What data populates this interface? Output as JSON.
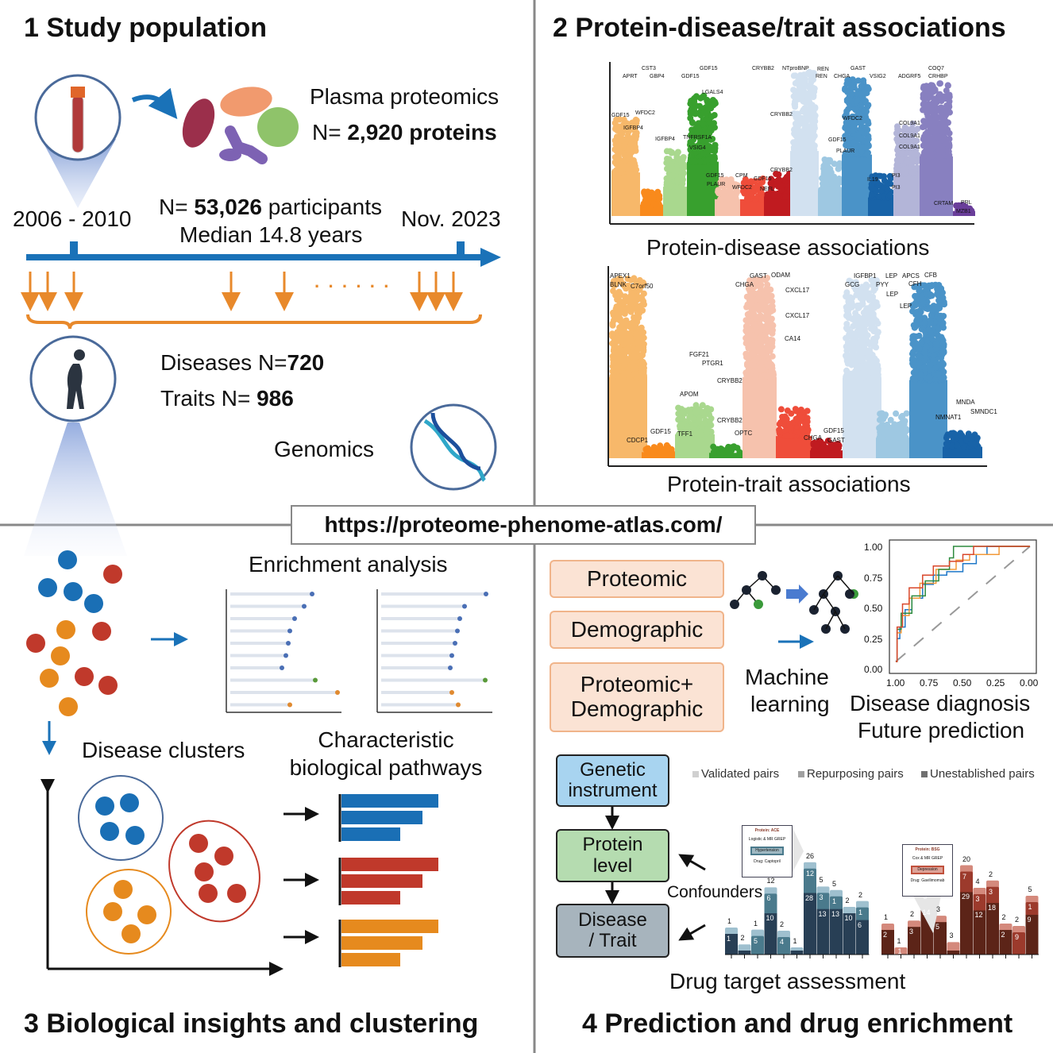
{
  "panel1": {
    "title": "1 Study population",
    "plasma_label": "Plasma proteomics",
    "proteins_prefix": "N= ",
    "proteins_value": "2,920 proteins",
    "start_date": "2006 - 2010",
    "participants_prefix": "N= ",
    "participants_value": "53,026",
    "participants_suffix": "participants",
    "median_followup": "Median 14.8 years",
    "end_date": "Nov. 2023",
    "diseases_prefix": "Diseases N=",
    "diseases_value": "720",
    "traits_prefix": "Traits N= ",
    "traits_value": "986",
    "genomics_label": "Genomics",
    "timeline_color": "#1a72b8",
    "arrow_color": "#e8892b",
    "ellipsis": "· · · · · ·"
  },
  "panel2": {
    "title": "2 Protein-disease/trait associations",
    "disease_plot_label": "Protein-disease associations",
    "trait_plot_label": "Protein-trait associations",
    "disease_labels": [
      "CST3",
      "APRT",
      "GBP4",
      "GDF15",
      "GDF15",
      "CRYBB2",
      "NTproBNP",
      "REN",
      "REN",
      "CHGA",
      "GAST",
      "VSIG2",
      "ADGRF5",
      "COQ7",
      "CRHBP",
      "LGALS4",
      "GDF15",
      "WFDC2",
      "IGFBP4",
      "CRYBB2",
      "WFDC2",
      "IGFBP4",
      "TNFRSF1A",
      "VSIG4",
      "GDF15",
      "PLAUR",
      "COL9A1",
      "COL9A1",
      "COL9A1",
      "CRYBB2",
      "GDF15",
      "CPM",
      "GDF15",
      "PLAUR",
      "WFDC2",
      "NEFL",
      "IL19",
      "PI3",
      "PI3",
      "CRTAM",
      "PRL",
      "MZB1"
    ],
    "trait_labels": [
      "APEX1",
      "BLNK",
      "C7orf50",
      "GAST",
      "ODAM",
      "CHGA",
      "CXCL17",
      "CXCL17",
      "CA14",
      "FGF21",
      "PTGR1",
      "CRYBB2",
      "APOM",
      "CRYBB2",
      "GDF15",
      "TFF1",
      "OPTC",
      "CDCP1",
      "GDF15",
      "CHGA",
      "GAST",
      "IGFBP1",
      "GCG",
      "LEP",
      "PYY",
      "APCS",
      "CFB",
      "CFH",
      "LEP",
      "LEP",
      "MNDA",
      "SMNDC1",
      "NMNAT1"
    ],
    "disease_colors": [
      "#f7b86a",
      "#f98a1c",
      "#a9d88e",
      "#38a02e",
      "#f6c2ad",
      "#ef4d3a",
      "#c01b20",
      "#d2e1f0",
      "#9ec8e2",
      "#4a93c8",
      "#1863a8",
      "#b3b5d8",
      "#8880c0",
      "#6a3e9a"
    ],
    "trait_colors": [
      "#f7b86a",
      "#f98a1c",
      "#a9d88e",
      "#38a02e",
      "#f6c2ad",
      "#ef4d3a",
      "#c01b20",
      "#d2e1f0",
      "#9ec8e2",
      "#4a93c8",
      "#1863a8"
    ]
  },
  "url": "https://proteome-phenome-atlas.com/",
  "panel3": {
    "title": "3 Biological insights and clustering",
    "enrichment_label": "Enrichment analysis",
    "clusters_label": "Disease clusters",
    "pathways_line1": "Characteristic",
    "pathways_line2": "biological pathways",
    "cluster_colors": [
      "#1a6fb5",
      "#c0392b",
      "#e68a1e"
    ]
  },
  "panel4": {
    "title": "4 Prediction and drug enrichment",
    "models": [
      "Proteomic",
      "Demographic",
      "Proteomic+ Demographic"
    ],
    "ml_line1": "Machine",
    "ml_line2": "learning",
    "roc_y_ticks": [
      "1.00",
      "0.75",
      "0.50",
      "0.25",
      "0.00"
    ],
    "roc_x_ticks": [
      "1.00",
      "0.75",
      "0.50",
      "0.25",
      "0.00"
    ],
    "roc_colors": [
      "#1f78c8",
      "#f29a3a",
      "#2e8b3e",
      "#d9472b"
    ],
    "outcome_line1": "Disease diagnosis",
    "outcome_line2": "Future prediction",
    "genetic_instrument": "Genetic instrument",
    "protein_level": "Protein level",
    "disease_trait": "Disease / Trait",
    "confounders": "Confounders",
    "legend": [
      "Validated pairs",
      "Repurposing pairs",
      "Unestablished pairs"
    ],
    "legend_colors": [
      "#d0d0d0",
      "#a0a0a0",
      "#707070"
    ],
    "inset_left": {
      "protein": "Protein: ACE",
      "left": "Logistic & MR",
      "right": "GREP",
      "center": "Hypertension",
      "drug": "Drug: Captopril"
    },
    "inset_right": {
      "protein": "Protein: BSG",
      "left": "Cox & MR",
      "right": "GREP",
      "center": "Depression",
      "drug": "Drug: Gavilimomab"
    },
    "drug_label": "Drug target  assessment",
    "left_bars": [
      {
        "dark": "1",
        "mid": "",
        "light": "",
        "top": "1"
      },
      {
        "dark": "",
        "mid": "",
        "light": "",
        "top": "2"
      },
      {
        "dark": "",
        "mid": "5",
        "light": "",
        "top": "1"
      },
      {
        "dark": "10",
        "mid": "6",
        "light": "",
        "top": "12"
      },
      {
        "dark": "",
        "mid": "4",
        "light": "",
        "top": "2"
      },
      {
        "dark": "",
        "mid": "",
        "light": "",
        "top": "1"
      },
      {
        "dark": "28",
        "mid": "12",
        "light": "",
        "top": "26"
      },
      {
        "dark": "13",
        "mid": "3",
        "light": "",
        "top": "5"
      },
      {
        "dark": "13",
        "mid": "1",
        "light": "",
        "top": "5"
      },
      {
        "dark": "10",
        "mid": "",
        "light": "",
        "top": "2"
      },
      {
        "dark": "6",
        "mid": "1",
        "light": "",
        "top": "2"
      }
    ],
    "right_bars": [
      {
        "dark": "2",
        "mid": "",
        "light": "",
        "top": "1"
      },
      {
        "dark": "",
        "mid": "",
        "light": "1",
        "top": "1"
      },
      {
        "dark": "3",
        "mid": "",
        "light": "",
        "top": "2"
      },
      {
        "dark": "14",
        "mid": "3",
        "light": "",
        "top": "4"
      },
      {
        "dark": "5",
        "mid": "",
        "light": "",
        "top": "3"
      },
      {
        "dark": "",
        "mid": "",
        "light": "",
        "top": "3"
      },
      {
        "dark": "29",
        "mid": "7",
        "light": "",
        "top": "20"
      },
      {
        "dark": "12",
        "mid": "3",
        "light": "",
        "top": "4"
      },
      {
        "dark": "18",
        "mid": "3",
        "light": "",
        "top": "2"
      },
      {
        "dark": "2",
        "mid": "",
        "light": "",
        "top": "2"
      },
      {
        "dark": "",
        "mid": "9",
        "light": "",
        "top": "2"
      },
      {
        "dark": "9",
        "mid": "1",
        "light": "",
        "top": "5"
      }
    ],
    "left_colors": [
      "#283f55",
      "#4a7a8c",
      "#9fc0cf"
    ],
    "right_colors": [
      "#5c2418",
      "#9c3a2c",
      "#d4897c"
    ]
  }
}
